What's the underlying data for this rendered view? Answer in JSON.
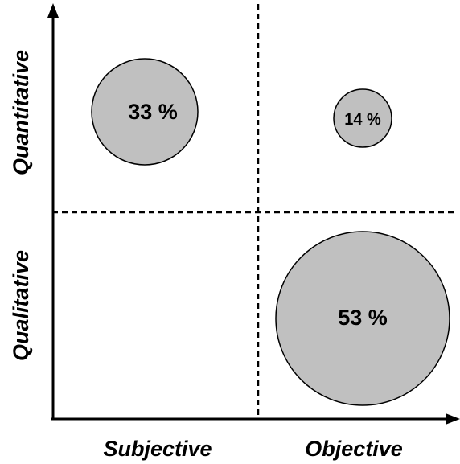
{
  "colors": {
    "axis": "#000000",
    "bubble_fill": "#c0c0c0",
    "bubble_stroke": "#000000",
    "background": "#ffffff"
  },
  "axes": {
    "x_left_label": "Subjective",
    "x_right_label": "Objective",
    "y_top_label": "Quantitative",
    "y_bottom_label": "Qualitative"
  },
  "bubbles": [
    {
      "label": "33 %",
      "quadrant": "subjective-quantitative",
      "value": 33
    },
    {
      "label": "14 %",
      "quadrant": "objective-quantitative",
      "value": 14
    },
    {
      "label": "53 %",
      "quadrant": "objective-qualitative",
      "value": 53
    }
  ]
}
